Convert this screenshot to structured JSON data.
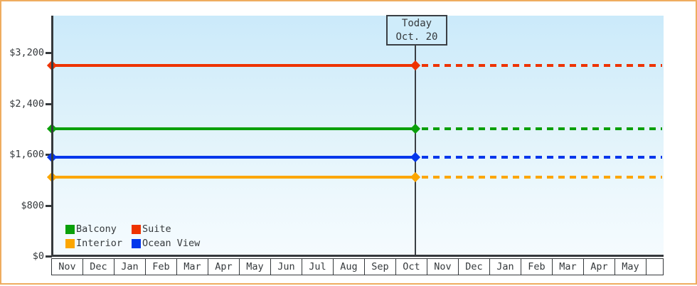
{
  "chart_data": {
    "type": "line",
    "title": "",
    "x_categories": [
      "Nov",
      "Dec",
      "Jan",
      "Feb",
      "Mar",
      "Apr",
      "May",
      "Jun",
      "Jul",
      "Aug",
      "Sep",
      "Oct",
      "Nov",
      "Dec",
      "Jan",
      "Feb",
      "Mar",
      "Apr",
      "May"
    ],
    "y_ticks": [
      {
        "label": "$0",
        "value": 0
      },
      {
        "label": "$800",
        "value": 800
      },
      {
        "label": "$1,600",
        "value": 1600
      },
      {
        "label": "$2,400",
        "value": 2400
      },
      {
        "label": "$3,200",
        "value": 3200
      }
    ],
    "ylim": [
      0,
      3780
    ],
    "grid": false,
    "legend_position": "bottom-left",
    "series": [
      {
        "name": "Balcony",
        "color": "#0AA00A",
        "value": 2000
      },
      {
        "name": "Suite",
        "color": "#EE3300",
        "value": 3000
      },
      {
        "name": "Interior",
        "color": "#FCA600",
        "value": 1240
      },
      {
        "name": "Ocean View",
        "color": "#0437EC",
        "value": 1550
      }
    ],
    "line_style": {
      "before_today": "solid",
      "after_today": "dashed"
    },
    "today_marker": {
      "line1": "Today",
      "line2": "Oct. 20",
      "month_index": 11,
      "month_fraction": 0.64
    }
  },
  "legend": {
    "items": [
      "Balcony",
      "Suite",
      "Interior",
      "Ocean View"
    ]
  },
  "colors": {
    "frame_border": "#EFAC60",
    "axis": "#35393C",
    "text": "#35393C",
    "plot_bg_top": "#CBEAFA",
    "plot_bg_bottom": "#F5FBFE",
    "today_box_bg": "#CFECFA"
  }
}
